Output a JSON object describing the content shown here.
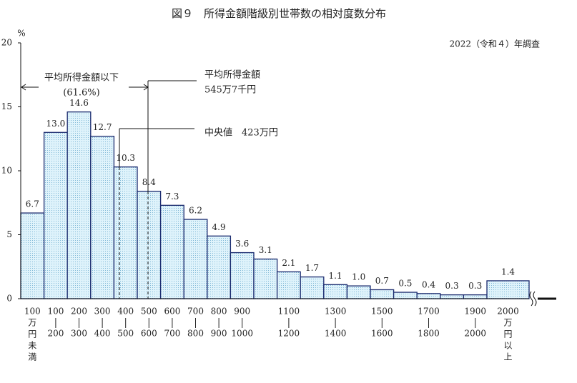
{
  "chart_data": {
    "type": "bar",
    "title": "図９　所得金額階級別世帯数の相対度数分布",
    "subtitle": "2022（令和４）年調査",
    "y_unit": "%",
    "annotations": [
      "平均所得金額以下",
      "(61.6%)",
      "平均所得金額",
      "545万7千円",
      "中央値　423万円"
    ],
    "categories": [
      [
        "100",
        "万",
        "円",
        "未",
        "満"
      ],
      [
        "100",
        "200"
      ],
      [
        "200",
        "300"
      ],
      [
        "300",
        "400"
      ],
      [
        "400",
        "500"
      ],
      [
        "500",
        "600"
      ],
      [
        "600",
        "700"
      ],
      [
        "700",
        "800"
      ],
      [
        "800",
        "900"
      ],
      [
        "900",
        "1000"
      ],
      null,
      [
        "1100",
        "1200"
      ],
      null,
      [
        "1300",
        "1400"
      ],
      null,
      [
        "1500",
        "1600"
      ],
      null,
      [
        "1700",
        "1800"
      ],
      null,
      [
        "1900",
        "2000"
      ],
      [
        "2000",
        "万",
        "円",
        "以",
        "上"
      ]
    ],
    "values": [
      6.7,
      13.0,
      14.6,
      12.7,
      10.3,
      8.4,
      7.3,
      6.2,
      4.9,
      3.6,
      3.1,
      2.1,
      1.7,
      1.1,
      1.0,
      0.7,
      0.5,
      0.4,
      0.3,
      0.3,
      1.4
    ],
    "value_labels": [
      "6.7",
      "13.0",
      "14.6",
      "12.7",
      "10.3",
      "8.4",
      "7.3",
      "6.2",
      "4.9",
      "3.6",
      "3.1",
      "2.1",
      "1.7",
      "1.1",
      "1.0",
      "0.7",
      "0.5",
      "0.4",
      "0.3",
      "0.3",
      "1.4"
    ],
    "ylim": [
      0,
      20
    ],
    "yticks": [
      0,
      5,
      10,
      15,
      20
    ],
    "color": "#d4eef8"
  }
}
